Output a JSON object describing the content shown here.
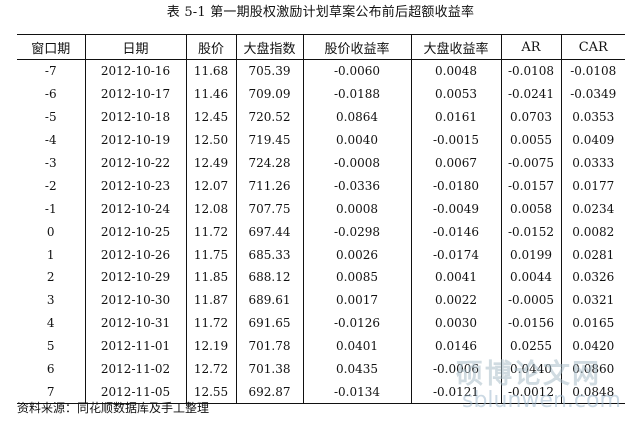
{
  "title": "表 5-1  第一期股权激励计划草案公布前后超额收益率",
  "table": {
    "headers": [
      "窗口期",
      "日期",
      "股价",
      "大盘指数",
      "股价收益率",
      "大盘收益率",
      "AR",
      "CAR"
    ],
    "rows": [
      [
        "-7",
        "2012-10-16",
        "11.68",
        "705.39",
        "-0.0060",
        "0.0048",
        "-0.0108",
        "-0.0108"
      ],
      [
        "-6",
        "2012-10-17",
        "11.46",
        "709.09",
        "-0.0188",
        "0.0053",
        "-0.0241",
        "-0.0349"
      ],
      [
        "-5",
        "2012-10-18",
        "12.45",
        "720.52",
        "0.0864",
        "0.0161",
        "0.0703",
        "0.0353"
      ],
      [
        "-4",
        "2012-10-19",
        "12.50",
        "719.45",
        "0.0040",
        "-0.0015",
        "0.0055",
        "0.0409"
      ],
      [
        "-3",
        "2012-10-22",
        "12.49",
        "724.28",
        "-0.0008",
        "0.0067",
        "-0.0075",
        "0.0333"
      ],
      [
        "-2",
        "2012-10-23",
        "12.07",
        "711.26",
        "-0.0336",
        "-0.0180",
        "-0.0157",
        "0.0177"
      ],
      [
        "-1",
        "2012-10-24",
        "12.08",
        "707.75",
        "0.0008",
        "-0.0049",
        "0.0058",
        "0.0234"
      ],
      [
        "0",
        "2012-10-25",
        "11.72",
        "697.44",
        "-0.0298",
        "-0.0146",
        "-0.0152",
        "0.0082"
      ],
      [
        "1",
        "2012-10-26",
        "11.75",
        "685.33",
        "0.0026",
        "-0.0174",
        "0.0199",
        "0.0281"
      ],
      [
        "2",
        "2012-10-29",
        "11.85",
        "688.12",
        "0.0085",
        "0.0041",
        "0.0044",
        "0.0326"
      ],
      [
        "3",
        "2012-10-30",
        "11.87",
        "689.61",
        "0.0017",
        "0.0022",
        "-0.0005",
        "0.0321"
      ],
      [
        "4",
        "2012-10-31",
        "11.72",
        "691.65",
        "-0.0126",
        "0.0030",
        "-0.0156",
        "0.0165"
      ],
      [
        "5",
        "2012-11-01",
        "12.19",
        "701.78",
        "0.0401",
        "0.0146",
        "0.0255",
        "0.0420"
      ],
      [
        "6",
        "2012-11-02",
        "12.72",
        "701.38",
        "0.0435",
        "-0.0006",
        "0.0440",
        "0.0860"
      ],
      [
        "7",
        "2012-11-05",
        "12.55",
        "692.87",
        "-0.0134",
        "-0.0121",
        "-0.0012",
        "0.0848"
      ]
    ]
  },
  "source_note": "资料来源：同花顺数据库及手工整理",
  "watermark": {
    "main": "硕博论文网",
    "sub": "sblunwen.com"
  }
}
